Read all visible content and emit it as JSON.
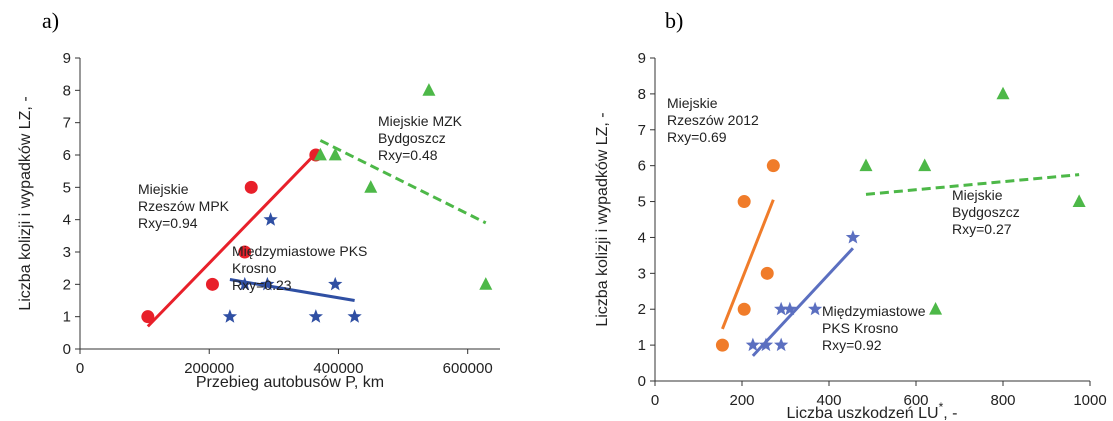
{
  "chart_data": [
    {
      "type": "scatter",
      "panel_label": "a)",
      "xlabel": "Przebieg autobusów  P, km",
      "ylabel": "Liczba kolizji i wypadków  LZ, -",
      "xlim": [
        0,
        650000
      ],
      "ylim": [
        0,
        9
      ],
      "xticks": [
        0,
        200000,
        400000,
        600000
      ],
      "yticks": [
        0,
        1,
        2,
        3,
        4,
        5,
        6,
        7,
        8,
        9
      ],
      "series": [
        {
          "marker": "circle",
          "color": "#e8202a",
          "points": [
            [
              105000,
              1
            ],
            [
              205000,
              2
            ],
            [
              255000,
              3
            ],
            [
              265000,
              5
            ],
            [
              365000,
              6
            ]
          ],
          "trend": [
            [
              105000,
              0.7
            ],
            [
              365000,
              6.05
            ]
          ],
          "trend_style": "solid"
        },
        {
          "marker": "star",
          "color": "#2f4fa3",
          "points": [
            [
              232000,
              1
            ],
            [
              255000,
              2
            ],
            [
              290000,
              2
            ],
            [
              295000,
              4
            ],
            [
              365000,
              1
            ],
            [
              395000,
              2
            ],
            [
              425000,
              1
            ]
          ],
          "trend": [
            [
              232000,
              2.15
            ],
            [
              425000,
              1.5
            ]
          ],
          "trend_style": "solid"
        },
        {
          "marker": "triangle",
          "color": "#4db848",
          "points": [
            [
              372000,
              6
            ],
            [
              395000,
              6
            ],
            [
              450000,
              5
            ],
            [
              540000,
              8
            ],
            [
              628000,
              2
            ]
          ],
          "trend": [
            [
              372000,
              6.45
            ],
            [
              628000,
              3.9
            ]
          ],
          "trend_style": "dashed"
        }
      ],
      "annotations": [
        {
          "lines": [
            "Miejskie",
            "Rzeszów MPK",
            "Rxy=0.94"
          ]
        },
        {
          "lines": [
            "Międzymiastowe PKS",
            "Krosno",
            "Rxy=0.23"
          ]
        },
        {
          "lines": [
            "Miejskie MZK",
            "Bydgoszcz",
            "Rxy=0.48"
          ]
        }
      ]
    },
    {
      "type": "scatter",
      "panel_label": "b)",
      "xlabel": "Liczba uszkodzeń  LU",
      "xlabel_sup": "*",
      "xlabel_suffix": ", -",
      "ylabel": "Liczba kolizji i wypadków  LZ, -",
      "xlim": [
        0,
        1000
      ],
      "ylim": [
        0,
        9
      ],
      "xticks": [
        0,
        200,
        400,
        600,
        800,
        1000
      ],
      "yticks": [
        0,
        1,
        2,
        3,
        4,
        5,
        6,
        7,
        8,
        9
      ],
      "series": [
        {
          "marker": "circle",
          "color": "#f07c2a",
          "points": [
            [
              155,
              1
            ],
            [
              205,
              2
            ],
            [
              205,
              5
            ],
            [
              258,
              3
            ],
            [
              272,
              6
            ]
          ],
          "trend": [
            [
              155,
              1.45
            ],
            [
              272,
              5.05
            ]
          ],
          "trend_style": "solid"
        },
        {
          "marker": "star",
          "color": "#5b6fc0",
          "points": [
            [
              225,
              1
            ],
            [
              255,
              1
            ],
            [
              290,
              1
            ],
            [
              290,
              2
            ],
            [
              310,
              2
            ],
            [
              368,
              2
            ],
            [
              455,
              4
            ]
          ],
          "trend": [
            [
              225,
              0.7
            ],
            [
              455,
              3.7
            ]
          ],
          "trend_style": "solid"
        },
        {
          "marker": "triangle",
          "color": "#4db848",
          "points": [
            [
              485,
              6
            ],
            [
              620,
              6
            ],
            [
              645,
              2
            ],
            [
              800,
              8
            ],
            [
              975,
              5
            ]
          ],
          "trend": [
            [
              485,
              5.2
            ],
            [
              975,
              5.75
            ]
          ],
          "trend_style": "dashed"
        }
      ],
      "annotations": [
        {
          "lines": [
            "Miejskie",
            "Rzeszów 2012",
            "Rxy=0.69"
          ]
        },
        {
          "lines": [
            "Miejskie",
            "Bydgoszcz",
            "Rxy=0.27"
          ]
        },
        {
          "lines": [
            "Międzymiastowe",
            "PKS Krosno",
            "Rxy=0.92"
          ]
        }
      ]
    }
  ]
}
